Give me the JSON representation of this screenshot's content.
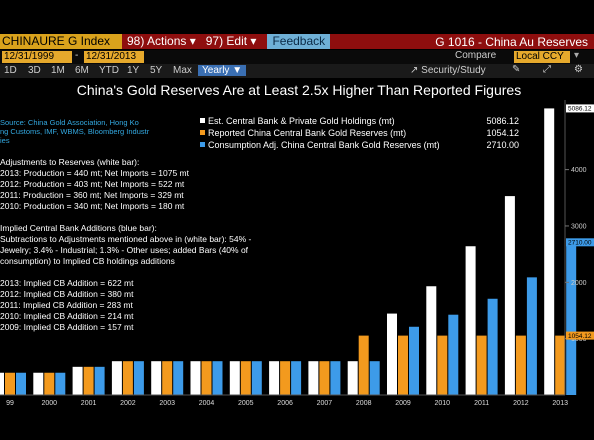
{
  "topbar": {
    "ticker": "CHINAURE G Index",
    "actions": "98) Actions ▾",
    "edit": "97) Edit ▾",
    "feedback": "Feedback",
    "title": "G 1016 - China Au Reserves"
  },
  "daterow": {
    "start_date": "12/31/1999",
    "end_date": "12/31/2013",
    "compare": "Compare",
    "currency": "Local CCY"
  },
  "rangerow": {
    "options": [
      "1D",
      "3D",
      "1M",
      "6M",
      "YTD",
      "1Y",
      "5Y",
      "Max"
    ],
    "selected": "Yearly ▼",
    "security": "Security/Study"
  },
  "colors": {
    "series_white": "#ffffff",
    "series_orange": "#f39a1e",
    "series_blue": "#3d9be9",
    "topbar": "#8e0e0e",
    "ticker_bg": "#d9a21c"
  },
  "chart_data": {
    "type": "bar",
    "title": "China's Gold Reserves Are at Least 2.5x Higher Than Reported Figures",
    "categories": [
      "1999",
      "2000",
      "2001",
      "2002",
      "2003",
      "2004",
      "2005",
      "2006",
      "2007",
      "2008",
      "2009",
      "2010",
      "2011",
      "2012",
      "2013"
    ],
    "category_labels": [
      "99",
      "2000",
      "2001",
      "2002",
      "2003",
      "2004",
      "2005",
      "2006",
      "2007",
      "2008",
      "2009",
      "2010",
      "2011",
      "2012",
      "2013"
    ],
    "series": [
      {
        "name": "Est. Central Bank & Private Gold Holdings (mt)",
        "color": "#ffffff",
        "legend_value": "5086.12",
        "values": [
          395,
          395,
          500,
          600,
          600,
          600,
          600,
          600,
          600,
          600,
          1445,
          1930,
          2640,
          3530,
          5086.12
        ]
      },
      {
        "name": "Reported China Central Bank Gold Reserves (mt)",
        "color": "#f39a1e",
        "legend_value": "1054.12",
        "values": [
          395,
          395,
          500,
          600,
          600,
          600,
          600,
          600,
          600,
          1054,
          1054,
          1054,
          1054,
          1054,
          1054.12
        ]
      },
      {
        "name": "Consumption Adj. China Central Bank Gold Reserves (mt)",
        "color": "#3d9be9",
        "legend_value": "2710.00",
        "values": [
          395,
          395,
          500,
          600,
          600,
          600,
          600,
          600,
          600,
          600,
          1211,
          1425,
          1708,
          2088,
          2710.0
        ]
      }
    ],
    "yticks": [
      1000,
      2000,
      3000,
      4000
    ],
    "ylim": [
      0,
      5200
    ],
    "value_labels": [
      "5086.12",
      "2710.00",
      "1054.12"
    ],
    "source": "Source: China Gold Association, Hong Kong Customs, IMF, WBMS, Bloomberg Industries",
    "notes": [
      "Adjustments to Reserves (white bar):",
      "2013: Production = 440 mt; Net Imports = 1075 mt",
      "2012: Production = 403 mt; Net Imports =  522 mt",
      "2011: Production = 360 mt; Net Imports =  329 mt",
      "2010: Production = 340 mt; Net Imports =  180 mt",
      "",
      "Implied Central Bank Additions (blue bar):",
      "Subtractions to Adjustments mentioned above in (white bar): 54% -",
      "Jewelry; 3.4% - Industrial; 1.3% - Other uses; added Bars (40% of",
      "consumption) to Implied CB holdings additions",
      "",
      "2013: Implied CB Addition = 622 mt",
      "2012: Implied CB Addition = 380 mt",
      "2011: Implied CB Addition = 283 mt",
      "2010: Implied CB Addition = 214 mt",
      "2009: Implied CB Addition = 157 mt"
    ]
  }
}
